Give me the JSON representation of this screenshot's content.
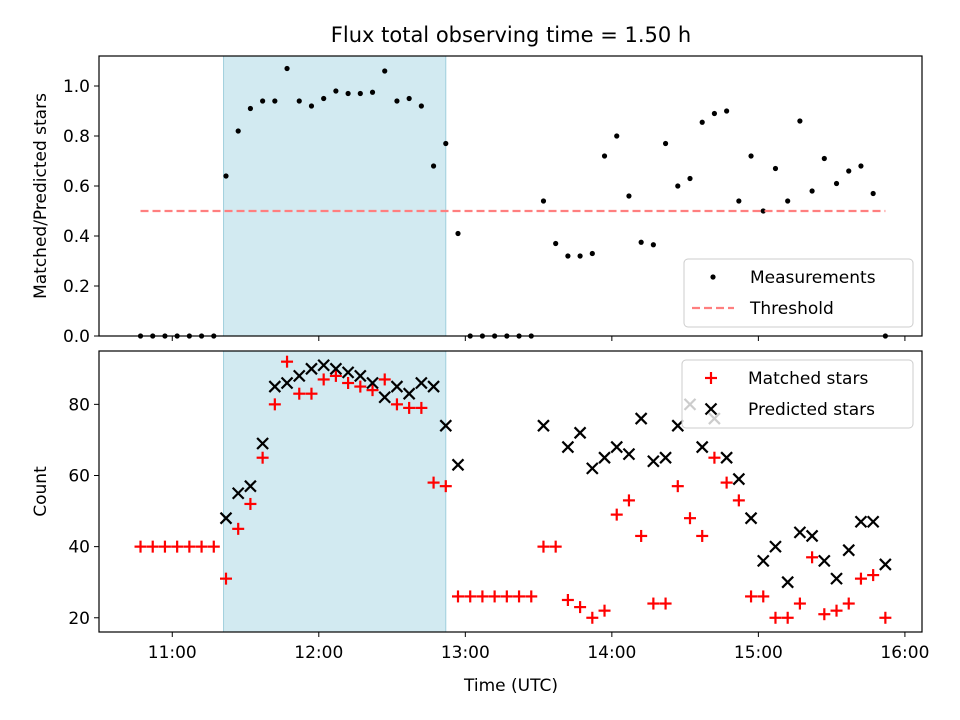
{
  "title": "Flux total observing time = 1.50 h",
  "colors": {
    "shade": "#add8e6",
    "measurement": "#000000",
    "threshold": "#ff7f7f",
    "matched": "#ff0000",
    "predicted": "#000000"
  },
  "chart_data": [
    {
      "type": "scatter",
      "ylabel": "Matched/Predicted stars",
      "ylim": [
        0,
        1.12
      ],
      "yticks": [
        0,
        0.2,
        0.4,
        0.6,
        0.8,
        1.0
      ],
      "ytick_labels": [
        "0.0",
        "0.2",
        "0.4",
        "0.6",
        "0.8",
        "1.0"
      ],
      "shaded_span": {
        "start": "11:21",
        "end": "12:52"
      },
      "legend_position": "lower-right",
      "series": [
        {
          "name": "Measurements",
          "marker": "dot",
          "x": [
            "10:47",
            "10:52",
            "10:57",
            "11:02",
            "11:07",
            "11:12",
            "11:17",
            "11:22",
            "11:27",
            "11:32",
            "11:37",
            "11:42",
            "11:47",
            "11:52",
            "11:57",
            "12:02",
            "12:07",
            "12:12",
            "12:17",
            "12:22",
            "12:27",
            "12:32",
            "12:37",
            "12:42",
            "12:47",
            "12:52",
            "12:57",
            "13:02",
            "13:07",
            "13:12",
            "13:17",
            "13:22",
            "13:27",
            "13:32",
            "13:37",
            "13:42",
            "13:47",
            "13:52",
            "13:57",
            "14:02",
            "14:07",
            "14:12",
            "14:17",
            "14:22",
            "14:27",
            "14:32",
            "14:37",
            "14:42",
            "14:47",
            "14:52",
            "14:57",
            "15:02",
            "15:07",
            "15:12",
            "15:17",
            "15:22",
            "15:27",
            "15:32",
            "15:37",
            "15:42",
            "15:47",
            "15:52"
          ],
          "y": [
            0,
            0,
            0,
            0,
            0,
            0,
            0,
            0.64,
            0.82,
            0.91,
            0.94,
            0.94,
            1.07,
            0.94,
            0.92,
            0.95,
            0.98,
            0.97,
            0.97,
            0.975,
            1.06,
            0.94,
            0.95,
            0.92,
            0.68,
            0.77,
            0.41,
            0,
            0,
            0,
            0,
            0,
            0,
            0.54,
            0.37,
            0.32,
            0.32,
            0.33,
            0.72,
            0.8,
            0.56,
            0.375,
            0.365,
            0.77,
            0.6,
            0.63,
            0.855,
            0.89,
            0.9,
            0.54,
            0.72,
            0.5,
            0.67,
            0.54,
            0.86,
            0.58,
            0.71,
            0.61,
            0.66,
            0.68,
            0.57,
            0
          ]
        },
        {
          "name": "Threshold",
          "line": "dashed",
          "x": [
            "10:47",
            "15:52"
          ],
          "y": [
            0.5,
            0.5
          ]
        }
      ]
    },
    {
      "type": "scatter",
      "xlabel": "Time (UTC)",
      "ylabel": "Count",
      "ylim": [
        16,
        95
      ],
      "yticks": [
        20,
        40,
        60,
        80
      ],
      "ytick_labels": [
        "20",
        "40",
        "60",
        "80"
      ],
      "xlim": [
        "10:30",
        "16:07"
      ],
      "xticks": [
        "11:00",
        "12:00",
        "13:00",
        "14:00",
        "15:00",
        "16:00"
      ],
      "shaded_span": {
        "start": "11:21",
        "end": "12:52"
      },
      "legend_position": "upper-right",
      "series": [
        {
          "name": "Matched stars",
          "marker": "plus",
          "x": [
            "10:47",
            "10:52",
            "10:57",
            "11:02",
            "11:07",
            "11:12",
            "11:17",
            "11:22",
            "11:27",
            "11:32",
            "11:37",
            "11:42",
            "11:47",
            "11:52",
            "11:57",
            "12:02",
            "12:07",
            "12:12",
            "12:17",
            "12:22",
            "12:27",
            "12:32",
            "12:37",
            "12:42",
            "12:47",
            "12:52",
            "12:57",
            "13:02",
            "13:07",
            "13:12",
            "13:17",
            "13:22",
            "13:27",
            "13:32",
            "13:37",
            "13:42",
            "13:47",
            "13:52",
            "13:57",
            "14:02",
            "14:07",
            "14:12",
            "14:17",
            "14:22",
            "14:27",
            "14:32",
            "14:37",
            "14:42",
            "14:47",
            "14:52",
            "14:57",
            "15:02",
            "15:07",
            "15:12",
            "15:17",
            "15:22",
            "15:27",
            "15:32",
            "15:37",
            "15:42",
            "15:47",
            "15:52"
          ],
          "y": [
            40,
            40,
            40,
            40,
            40,
            40,
            40,
            31,
            45,
            52,
            65,
            80,
            92,
            83,
            83,
            87,
            88,
            86,
            85,
            84,
            87,
            80,
            79,
            79,
            58,
            57,
            26,
            26,
            26,
            26,
            26,
            26,
            26,
            40,
            40,
            25,
            23,
            20,
            22,
            49,
            53,
            43,
            24,
            24,
            57,
            48,
            43,
            65,
            58,
            53,
            26,
            26,
            20,
            20,
            24,
            37,
            21,
            22,
            24,
            31,
            32,
            20
          ]
        },
        {
          "name": "Predicted stars",
          "marker": "x",
          "x": [
            "11:22",
            "11:27",
            "11:32",
            "11:37",
            "11:42",
            "11:47",
            "11:52",
            "11:57",
            "12:02",
            "12:07",
            "12:12",
            "12:17",
            "12:22",
            "12:27",
            "12:32",
            "12:37",
            "12:42",
            "12:47",
            "12:52",
            "12:57",
            "13:32",
            "13:42",
            "13:47",
            "13:52",
            "13:57",
            "14:02",
            "14:07",
            "14:12",
            "14:17",
            "14:22",
            "14:27",
            "14:32",
            "14:37",
            "14:42",
            "14:47",
            "14:52",
            "14:57",
            "15:02",
            "15:07",
            "15:12",
            "15:17",
            "15:22",
            "15:27",
            "15:32",
            "15:37",
            "15:42",
            "15:47",
            "15:52"
          ],
          "y": [
            48,
            55,
            57,
            69,
            85,
            86,
            88,
            90,
            91,
            90,
            89,
            88,
            86,
            82,
            85,
            83,
            86,
            85,
            74,
            63,
            74,
            68,
            72,
            62,
            65,
            68,
            66,
            76,
            64,
            65,
            74,
            80,
            68,
            76,
            65,
            59,
            48,
            36,
            40,
            30,
            44,
            43,
            36,
            31,
            39,
            47,
            47,
            35
          ]
        }
      ]
    }
  ]
}
